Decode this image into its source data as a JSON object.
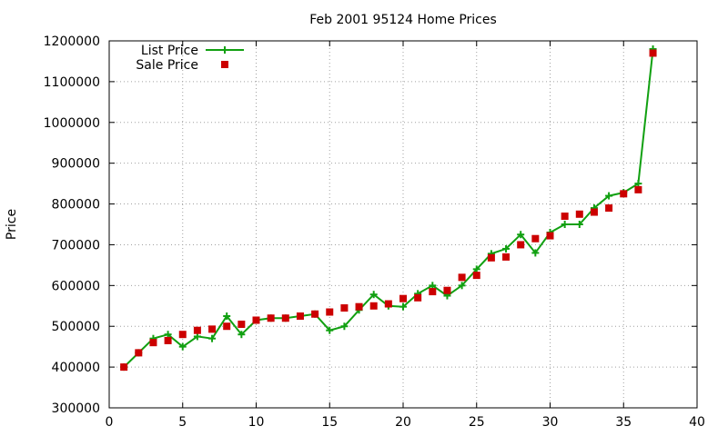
{
  "chart_data": {
    "type": "line",
    "title": "Feb 2001 95124 Home Prices",
    "xlabel": "",
    "ylabel": "Price",
    "xlim": [
      0,
      40
    ],
    "ylim": [
      300000,
      1200000
    ],
    "x_ticks": [
      0,
      5,
      10,
      15,
      20,
      25,
      30,
      35,
      40
    ],
    "y_ticks": [
      300000,
      400000,
      500000,
      600000,
      700000,
      800000,
      900000,
      1000000,
      1100000,
      1200000
    ],
    "grid": true,
    "legend_position": "top-left",
    "series": [
      {
        "name": "List Price",
        "kind": "line+cross",
        "color": "#11a011",
        "x": [
          1,
          2,
          3,
          4,
          5,
          6,
          7,
          8,
          9,
          10,
          11,
          12,
          13,
          14,
          15,
          16,
          17,
          18,
          19,
          20,
          21,
          22,
          23,
          24,
          25,
          26,
          27,
          28,
          29,
          30,
          31,
          32,
          33,
          34,
          35,
          36,
          37
        ],
        "y": [
          400000,
          435000,
          470000,
          480000,
          450000,
          475000,
          470000,
          525000,
          480000,
          515000,
          520000,
          520000,
          525000,
          530000,
          490000,
          500000,
          540000,
          578000,
          550000,
          548000,
          580000,
          600000,
          575000,
          600000,
          640000,
          678000,
          690000,
          725000,
          680000,
          730000,
          750000,
          750000,
          790000,
          820000,
          828000,
          850000,
          1180000
        ]
      },
      {
        "name": "Sale Price",
        "kind": "square",
        "color": "#cc0000",
        "x": [
          1,
          2,
          3,
          4,
          5,
          6,
          7,
          8,
          9,
          10,
          11,
          12,
          13,
          14,
          15,
          16,
          17,
          18,
          19,
          20,
          21,
          22,
          23,
          24,
          25,
          26,
          27,
          28,
          29,
          30,
          31,
          32,
          33,
          34,
          35,
          36,
          37
        ],
        "y": [
          400000,
          435000,
          460000,
          465000,
          480000,
          490000,
          493000,
          500000,
          505000,
          515000,
          520000,
          520000,
          525000,
          530000,
          535000,
          545000,
          548000,
          550000,
          555000,
          568000,
          570000,
          585000,
          588000,
          620000,
          625000,
          668000,
          670000,
          700000,
          715000,
          722000,
          770000,
          775000,
          780000,
          790000,
          825000,
          835000,
          1170000
        ]
      }
    ]
  }
}
